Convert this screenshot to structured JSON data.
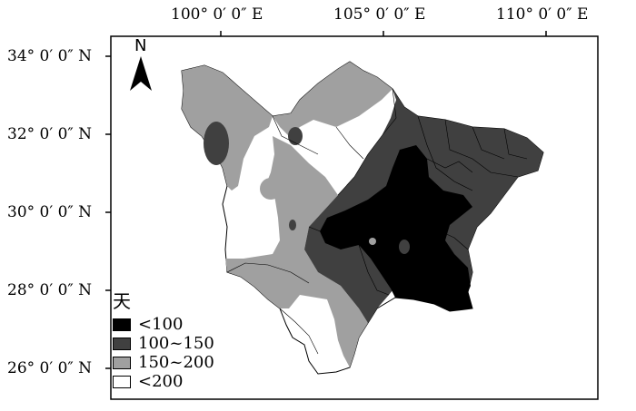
{
  "map": {
    "x_ticks": [
      "100° 0′ 0″ E",
      "105° 0′ 0″ E",
      "110° 0′ 0″ E"
    ],
    "y_ticks": [
      "34° 0′ 0″ N",
      "32° 0′ 0″ N",
      "30° 0′ 0″ N",
      "28° 0′ 0″ N",
      "26° 0′ 0″ N"
    ],
    "north_label": "N",
    "legend": {
      "title": "天",
      "items": [
        {
          "label": "<100",
          "color": "#000000"
        },
        {
          "label": "100~150",
          "color": "#404040"
        },
        {
          "label": "150~200",
          "color": "#a0a0a0"
        },
        {
          "label": "<200",
          "color": "#ffffff"
        }
      ]
    }
  }
}
